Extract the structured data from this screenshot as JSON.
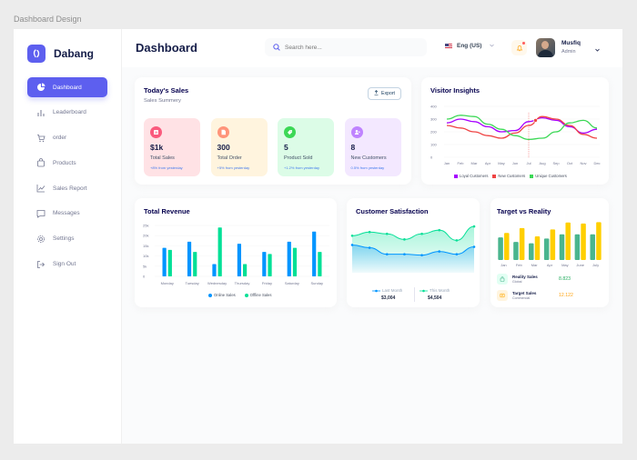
{
  "frame_label": "Dashboard Design",
  "brand": {
    "name": "Dabang"
  },
  "sidebar": {
    "items": [
      {
        "label": "Dashboard",
        "icon": "pie-chart-icon"
      },
      {
        "label": "Leaderboard",
        "icon": "bar-chart-icon"
      },
      {
        "label": "order",
        "icon": "cart-icon"
      },
      {
        "label": "Products",
        "icon": "shopping-bag-icon"
      },
      {
        "label": "Sales Report",
        "icon": "line-chart-icon"
      },
      {
        "label": "Messages",
        "icon": "message-icon"
      },
      {
        "label": "Settings",
        "icon": "gear-icon"
      },
      {
        "label": "Sign Out",
        "icon": "sign-out-icon"
      }
    ]
  },
  "header": {
    "title": "Dashboard",
    "search_placeholder": "Search here...",
    "language": "Eng (US)",
    "user": {
      "name": "Musfiq",
      "role": "Admin"
    }
  },
  "todays_sales": {
    "title": "Today's Sales",
    "subtitle": "Sales Summery",
    "export_label": "Export",
    "stats": [
      {
        "value": "$1k",
        "label": "Total Sales",
        "change": "+8% from yesterday",
        "bg": "#ffe2e5",
        "icon_bg": "#fa5a7d"
      },
      {
        "value": "300",
        "label": "Total Order",
        "change": "+5% from yesterday",
        "bg": "#fff4de",
        "icon_bg": "#ff947a"
      },
      {
        "value": "5",
        "label": "Product Sold",
        "change": "+1.2% from yesterday",
        "bg": "#dcfce7",
        "icon_bg": "#3cd856"
      },
      {
        "value": "8",
        "label": "New Customers",
        "change": "0.5% from yesterday",
        "bg": "#f3e8ff",
        "icon_bg": "#bf83ff"
      }
    ]
  },
  "visitor_insights": {
    "title": "Visitor Insights",
    "legend": [
      "Loyal Customers",
      "New Customers",
      "Unique Customers"
    ]
  },
  "total_revenue": {
    "title": "Total Revenue",
    "legend": [
      "Online Sales",
      "Offline Sales"
    ]
  },
  "customer_satisfaction": {
    "title": "Customer Satisfaction",
    "last_month_label": "Last Month",
    "this_month_label": "This Month",
    "last_month_value": "$3,004",
    "this_month_value": "$4,504"
  },
  "target_vs_reality": {
    "title": "Target vs Reality",
    "rows": [
      {
        "name": "Reality Sales",
        "sub": "Global",
        "value": "8.823",
        "color": "#4ab58e"
      },
      {
        "name": "Target Sales",
        "sub": "Commercial",
        "value": "12.122",
        "color": "#ffcf00"
      }
    ]
  },
  "chart_data": [
    {
      "type": "line",
      "title": "Visitor Insights",
      "x": [
        "Jan",
        "Feb",
        "Mar",
        "Apr",
        "May",
        "Jun",
        "Jul",
        "Aug",
        "Sep",
        "Oct",
        "Nov",
        "Dec"
      ],
      "ylim": [
        0,
        400
      ],
      "yticks": [
        "400",
        "300",
        "200",
        "100",
        "0"
      ],
      "series": [
        {
          "name": "Loyal Customers",
          "color": "#a700ff",
          "values": [
            270,
            300,
            280,
            240,
            200,
            210,
            280,
            310,
            290,
            240,
            190,
            220
          ]
        },
        {
          "name": "New Customers",
          "color": "#ef4444",
          "values": [
            250,
            230,
            200,
            170,
            150,
            190,
            250,
            320,
            300,
            250,
            180,
            150
          ]
        },
        {
          "name": "Unique Customers",
          "color": "#3cd856",
          "values": [
            300,
            330,
            320,
            260,
            220,
            170,
            140,
            150,
            200,
            270,
            290,
            230
          ]
        }
      ]
    },
    {
      "type": "bar",
      "title": "Total Revenue",
      "categories": [
        "Monday",
        "Tuesday",
        "Wednesday",
        "Thursday",
        "Friday",
        "Saturday",
        "Sunday"
      ],
      "ylim": [
        0,
        25
      ],
      "yticks": [
        "25k",
        "20k",
        "15k",
        "10k",
        "5k",
        "0"
      ],
      "series": [
        {
          "name": "Online Sales",
          "color": "#0095ff",
          "values": [
            14,
            17,
            6,
            16,
            12,
            17,
            22
          ]
        },
        {
          "name": "Offline Sales",
          "color": "#00e096",
          "values": [
            13,
            12,
            24,
            6,
            11,
            14,
            12
          ]
        }
      ]
    },
    {
      "type": "area",
      "title": "Customer Satisfaction",
      "series": [
        {
          "name": "Last Month",
          "color": "#0095ff",
          "values": [
            3.0,
            2.7,
            2.0,
            2.0,
            1.9,
            2.3,
            2.0,
            2.8
          ]
        },
        {
          "name": "This Month",
          "color": "#07e098",
          "values": [
            4.0,
            4.4,
            4.2,
            3.6,
            4.2,
            4.6,
            3.5,
            5.0
          ]
        }
      ]
    },
    {
      "type": "bar",
      "title": "Target vs Reality",
      "categories": [
        "Jan",
        "Feb",
        "Mar",
        "Apr",
        "May",
        "June",
        "July"
      ],
      "series": [
        {
          "name": "Reality Sales",
          "color": "#4ab58e",
          "values": [
            6.5,
            5.2,
            4.8,
            6.2,
            7.4,
            7.4,
            7.4
          ]
        },
        {
          "name": "Target Sales",
          "color": "#ffcf00",
          "values": [
            7.8,
            9.2,
            6.8,
            8.8,
            10.8,
            10.5,
            10.9
          ]
        }
      ]
    }
  ]
}
